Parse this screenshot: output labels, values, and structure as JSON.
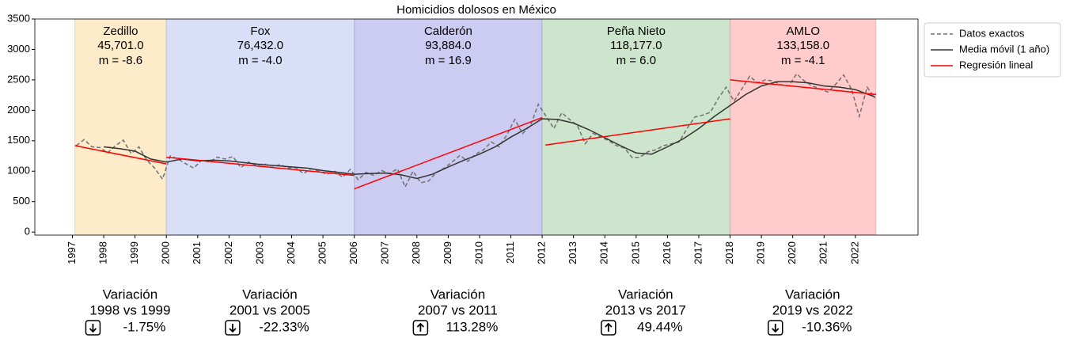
{
  "chart_data": {
    "type": "line",
    "title": "Homicidios dolosos en México",
    "xlim": [
      1995.8,
      2024
    ],
    "ylim": [
      -50,
      3500
    ],
    "xticks": [
      1997,
      1998,
      1999,
      2000,
      2001,
      2002,
      2003,
      2004,
      2005,
      2006,
      2007,
      2008,
      2009,
      2010,
      2011,
      2012,
      2013,
      2014,
      2015,
      2016,
      2017,
      2018,
      2019,
      2020,
      2021,
      2022
    ],
    "yticks": [
      0,
      500,
      1000,
      1500,
      2000,
      2500,
      3000,
      3500
    ],
    "legend_position": "outside upper right",
    "series": [
      {
        "name": "Datos exactos",
        "color": "#707070",
        "linestyle": "dashed",
        "x": [
          1997.125,
          1997.375,
          1997.625,
          1997.875,
          1998.125,
          1998.375,
          1998.625,
          1998.875,
          1999.125,
          1999.375,
          1999.625,
          1999.875,
          2000.125,
          2000.375,
          2000.625,
          2000.875,
          2001.125,
          2001.375,
          2001.625,
          2001.875,
          2002.125,
          2002.375,
          2002.625,
          2002.875,
          2003.125,
          2003.375,
          2003.625,
          2003.875,
          2004.125,
          2004.375,
          2004.625,
          2004.875,
          2005.125,
          2005.375,
          2005.625,
          2005.875,
          2006.125,
          2006.375,
          2006.625,
          2006.875,
          2007.125,
          2007.375,
          2007.625,
          2007.875,
          2008.125,
          2008.375,
          2008.625,
          2008.875,
          2009.125,
          2009.375,
          2009.625,
          2009.875,
          2010.125,
          2010.375,
          2010.625,
          2010.875,
          2011.125,
          2011.375,
          2011.625,
          2011.875,
          2012.125,
          2012.375,
          2012.625,
          2012.875,
          2013.125,
          2013.375,
          2013.625,
          2013.875,
          2014.125,
          2014.375,
          2014.625,
          2014.875,
          2015.125,
          2015.375,
          2015.625,
          2015.875,
          2016.125,
          2016.375,
          2016.625,
          2016.875,
          2017.125,
          2017.375,
          2017.625,
          2017.875,
          2018.125,
          2018.375,
          2018.625,
          2018.875,
          2019.125,
          2019.375,
          2019.625,
          2019.875,
          2020.125,
          2020.375,
          2020.625,
          2020.875,
          2021.125,
          2021.375,
          2021.625,
          2021.875,
          2022.125,
          2022.375,
          2022.625
        ],
        "values": [
          1420,
          1520,
          1400,
          1390,
          1300,
          1420,
          1510,
          1290,
          1400,
          1180,
          1050,
          870,
          1250,
          1200,
          1120,
          1050,
          1180,
          1150,
          1230,
          1200,
          1240,
          1060,
          1150,
          1100,
          1120,
          1060,
          1110,
          1050,
          1060,
          960,
          1040,
          1000,
          950,
          1000,
          900,
          1030,
          860,
          980,
          930,
          1010,
          960,
          1040,
          740,
          1000,
          810,
          840,
          980,
          1050,
          1150,
          1260,
          1160,
          1280,
          1350,
          1480,
          1400,
          1600,
          1850,
          1620,
          1750,
          2100,
          1900,
          1700,
          1960,
          1850,
          1750,
          1450,
          1620,
          1560,
          1500,
          1420,
          1380,
          1220,
          1230,
          1320,
          1350,
          1420,
          1450,
          1480,
          1700,
          1890,
          1920,
          1970,
          2200,
          2380,
          2150,
          2350,
          2560,
          2450,
          2500,
          2480,
          2420,
          2400,
          2600,
          2480,
          2400,
          2350,
          2300,
          2430,
          2580,
          2350,
          1900,
          2380,
          2200
        ]
      },
      {
        "name": "Media móvil (1 año)",
        "color": "#333333",
        "linestyle": "solid",
        "x": [
          1998.0,
          1998.5,
          1999.0,
          1999.5,
          2000.0,
          2000.5,
          2001.0,
          2001.5,
          2002.0,
          2002.5,
          2003.0,
          2003.5,
          2004.0,
          2004.5,
          2005.0,
          2005.5,
          2006.0,
          2006.5,
          2007.0,
          2007.5,
          2008.0,
          2008.5,
          2009.0,
          2009.5,
          2010.0,
          2010.5,
          2011.0,
          2011.5,
          2012.0,
          2012.5,
          2013.0,
          2013.5,
          2014.0,
          2014.5,
          2015.0,
          2015.5,
          2016.0,
          2016.5,
          2017.0,
          2017.5,
          2018.0,
          2018.5,
          2019.0,
          2019.5,
          2020.0,
          2020.5,
          2021.0,
          2021.5,
          2022.0,
          2022.625
        ],
        "values": [
          1400,
          1370,
          1330,
          1200,
          1150,
          1200,
          1170,
          1180,
          1170,
          1140,
          1110,
          1090,
          1070,
          1050,
          1010,
          980,
          950,
          960,
          970,
          940,
          880,
          950,
          1070,
          1180,
          1280,
          1400,
          1560,
          1700,
          1860,
          1850,
          1790,
          1680,
          1550,
          1420,
          1300,
          1280,
          1400,
          1530,
          1700,
          1900,
          2080,
          2260,
          2400,
          2470,
          2470,
          2450,
          2400,
          2380,
          2340,
          2220
        ]
      },
      {
        "name": "Regresión lineal",
        "color": "#ff0000",
        "linestyle": "solid",
        "x": [
          1997.08,
          2000.0,
          null,
          2000.0,
          2006.0,
          null,
          2006.0,
          2012.0,
          null,
          2012.1,
          2018.0,
          null,
          2018.0,
          2022.66
        ],
        "values": [
          1420,
          1120,
          null,
          1230,
          930,
          null,
          710,
          1880,
          null,
          1430,
          1860,
          null,
          2500,
          2260
        ]
      }
    ],
    "periods": [
      {
        "name": "Zedillo",
        "total": {
          "value": 45701,
          "label": "45,701.0"
        },
        "slope": {
          "value": -8.6,
          "label": "m = -8.6"
        },
        "start": 1997.08,
        "end": 2000.0,
        "color": "#fdebc9",
        "variation": {
          "heading": "Variación",
          "comparison": "1998 vs 1999",
          "change": {
            "value": -1.75,
            "label": "-1.75%"
          }
        }
      },
      {
        "name": "Fox",
        "total": {
          "value": 76432,
          "label": "76,432.0"
        },
        "slope": {
          "value": -4.0,
          "label": "m = -4.0"
        },
        "start": 2000.0,
        "end": 2006.0,
        "color": "#d9dff7",
        "variation": {
          "heading": "Variación",
          "comparison": "2001 vs 2005",
          "change": {
            "value": -22.33,
            "label": "-22.33%"
          }
        }
      },
      {
        "name": "Calderón",
        "total": {
          "value": 93884,
          "label": "93,884.0"
        },
        "slope": {
          "value": 16.9,
          "label": "m = 16.9"
        },
        "start": 2006.0,
        "end": 2012.0,
        "color": "#cccbf2",
        "variation": {
          "heading": "Variación",
          "comparison": "2007 vs 2011",
          "change": {
            "value": 113.28,
            "label": "113.28%"
          }
        }
      },
      {
        "name": "Peña Nieto",
        "total": {
          "value": 118177,
          "label": "118,177.0"
        },
        "slope": {
          "value": 6.0,
          "label": "m = 6.0"
        },
        "start": 2012.0,
        "end": 2018.0,
        "color": "#cce5cc",
        "variation": {
          "heading": "Variación",
          "comparison": "2013 vs 2017",
          "change": {
            "value": 49.44,
            "label": "49.44%"
          }
        }
      },
      {
        "name": "AMLO",
        "total": {
          "value": 133158,
          "label": "133,158.0"
        },
        "slope": {
          "value": -4.1,
          "label": "m = -4.1"
        },
        "start": 2018.0,
        "end": 2022.66,
        "color": "#ffcbcb",
        "variation": {
          "heading": "Variación",
          "comparison": "2019 vs 2022",
          "change": {
            "value": -10.36,
            "label": "-10.36%"
          }
        }
      }
    ]
  }
}
